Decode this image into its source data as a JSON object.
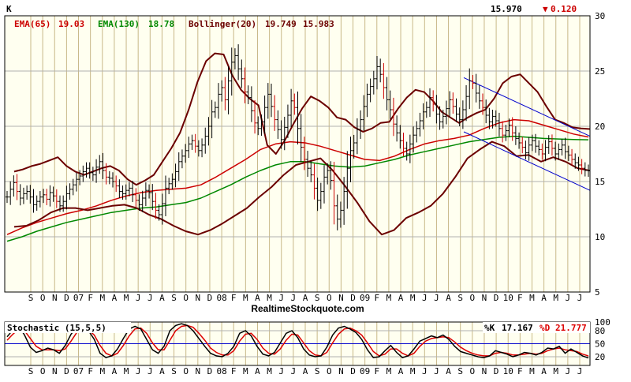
{
  "header": {
    "symbol": "K",
    "last_price": "15.970",
    "change_arrow": "▼",
    "change_value": "0.120"
  },
  "legend": {
    "ema65_label": "EMA(65)",
    "ema65_value": "19.03",
    "ema130_label": "EMA(130)",
    "ema130_value": "18.78",
    "bollinger_label": "Bollinger(20)",
    "bollinger_value1": "19.749",
    "bollinger_value2": "15.983"
  },
  "attribution": "RealtimeStockquote.com",
  "stoch_header": {
    "title": "Stochastic (15,5,5)",
    "k_label": "%K",
    "k_value": "17.167",
    "d_label": "%D",
    "d_value": "21.777"
  },
  "colors": {
    "background": "#FFFFF0",
    "grid_vertical": "#C8B888",
    "grid_horizontal": "#B0B0B0",
    "price_bars": "#000000",
    "price_bars_down": "#CC0000",
    "ema65": "#CC0000",
    "ema130": "#008800",
    "bollinger": "#6B0000",
    "channel": "#0000CC",
    "stoch_k": "#000000",
    "stoch_d": "#DD0000",
    "stoch_ref": "#0000CC",
    "legend_ema65": "#CC0000",
    "legend_ema130": "#008800",
    "legend_boll": "#6B0000",
    "change_down": "#CC0000"
  },
  "chart_data": [
    {
      "type": "line",
      "title": "",
      "y_axis": {
        "ticks": [
          5,
          10,
          15,
          20,
          25,
          30
        ],
        "range": [
          5,
          30
        ],
        "position": "right"
      },
      "x_axis_labels": [
        "S",
        "O",
        "N",
        "D",
        "07",
        "F",
        "M",
        "A",
        "M",
        "J",
        "J",
        "A",
        "S",
        "O",
        "N",
        "D",
        "08",
        "F",
        "M",
        "A",
        "M",
        "J",
        "J",
        "A",
        "S",
        "O",
        "N",
        "D",
        "09",
        "F",
        "M",
        "A",
        "M",
        "J",
        "J",
        "A",
        "S",
        "O",
        "N",
        "D",
        "10",
        "F",
        "M",
        "A",
        "M",
        "J",
        "J"
      ],
      "grid": true,
      "series": [
        {
          "name": "Price",
          "key": "close",
          "style": "ohlc-bars",
          "values": [
            13.6,
            14.3,
            14.9,
            14.1,
            13.5,
            13.9,
            14.1,
            13.6,
            12.9,
            13.2,
            13.6,
            13.8,
            13.4,
            14.0,
            13.7,
            13.2,
            12.8,
            13.2,
            13.9,
            14.3,
            14.7,
            15.2,
            15.5,
            15.9,
            16.2,
            15.8,
            15.6,
            16.3,
            16.8,
            16.0,
            15.4,
            15.3,
            15.0,
            14.6,
            14.1,
            13.9,
            14.2,
            14.4,
            13.8,
            13.3,
            12.9,
            13.5,
            14.2,
            14.0,
            13.2,
            12.4,
            12.0,
            13.0,
            14.4,
            14.8,
            15.2,
            15.9,
            16.8,
            17.3,
            17.8,
            18.4,
            18.7,
            18.2,
            17.8,
            18.3,
            19.1,
            20.0,
            21.3,
            21.7,
            22.9,
            23.5,
            22.4,
            24.1,
            25.8,
            26.4,
            25.2,
            24.3,
            23.1,
            22.6,
            21.4,
            20.3,
            19.8,
            20.4,
            21.7,
            22.9,
            21.8,
            20.6,
            19.7,
            18.8,
            19.9,
            21.0,
            22.3,
            21.7,
            19.8,
            18.1,
            17.0,
            16.2,
            15.6,
            14.4,
            13.3,
            14.1,
            15.4,
            16.0,
            15.1,
            12.8,
            11.6,
            12.4,
            14.1,
            16.2,
            17.8,
            18.5,
            19.7,
            20.6,
            21.8,
            22.9,
            23.6,
            24.3,
            25.4,
            24.7,
            23.5,
            22.4,
            21.5,
            20.2,
            19.4,
            18.7,
            18.0,
            17.5,
            18.4,
            19.2,
            19.8,
            20.5,
            21.3,
            21.7,
            22.6,
            22.0,
            21.1,
            20.4,
            20.9,
            21.6,
            22.4,
            21.8,
            21.1,
            20.6,
            21.5,
            22.7,
            24.1,
            23.9,
            23.0,
            22.3,
            21.7,
            21.0,
            20.4,
            20.9,
            20.5,
            19.8,
            19.2,
            19.6,
            20.1,
            19.4,
            18.9,
            18.5,
            18.1,
            17.6,
            18.3,
            18.7,
            18.2,
            17.9,
            17.5,
            18.1,
            18.6,
            18.0,
            17.5,
            17.9,
            18.3,
            17.7,
            17.4,
            17.0,
            16.7,
            16.5,
            16.2,
            16.0,
            15.97
          ]
        },
        {
          "name": "EMA(65)",
          "key": "ema65",
          "values": [
            10.2,
            10.8,
            11.3,
            11.7,
            12.1,
            12.4,
            12.8,
            13.3,
            13.7,
            14.0,
            14.2,
            14.3,
            14.4,
            14.7,
            15.4,
            16.2,
            17.0,
            17.9,
            18.4,
            18.6,
            18.5,
            18.2,
            17.8,
            17.4,
            17.0,
            16.9,
            17.3,
            17.9,
            18.4,
            18.7,
            18.9,
            19.2,
            19.8,
            20.3,
            20.6,
            20.5,
            20.1,
            19.7,
            19.3,
            19.03
          ]
        },
        {
          "name": "EMA(130)",
          "key": "ema130",
          "values": [
            9.6,
            10.0,
            10.5,
            10.9,
            11.3,
            11.6,
            11.9,
            12.2,
            12.4,
            12.6,
            12.7,
            12.9,
            13.1,
            13.5,
            14.1,
            14.7,
            15.4,
            16.0,
            16.5,
            16.8,
            16.8,
            16.6,
            16.4,
            16.3,
            16.4,
            16.7,
            17.0,
            17.4,
            17.7,
            18.0,
            18.3,
            18.6,
            18.8,
            19.0,
            19.1,
            19.0,
            18.9,
            18.85,
            18.8,
            18.78
          ]
        },
        {
          "name": "Bollinger(20) Upper",
          "key": "boll_upper",
          "values": [
            15.9,
            16.1,
            16.4,
            16.6,
            16.9,
            17.2,
            16.4,
            15.9,
            15.6,
            15.9,
            16.2,
            16.4,
            16.0,
            15.2,
            14.7,
            15.1,
            15.6,
            16.8,
            18.0,
            19.4,
            21.5,
            24.0,
            25.9,
            26.6,
            26.5,
            24.6,
            23.3,
            22.5,
            21.9,
            18.3,
            17.5,
            18.7,
            20.2,
            21.6,
            22.7,
            22.3,
            21.7,
            20.8,
            20.6,
            19.9,
            19.5,
            19.8,
            20.3,
            20.4,
            21.6,
            22.6,
            23.3,
            23.1,
            22.3,
            21.3,
            20.8,
            20.3,
            20.8,
            21.2,
            21.5,
            22.5,
            23.9,
            24.5,
            24.7,
            23.9,
            23.1,
            21.8,
            20.6,
            20.3,
            19.9,
            19.8,
            19.749
          ]
        },
        {
          "name": "Bollinger(20) Lower",
          "key": "boll_lower",
          "values": [
            10.9,
            11.0,
            11.5,
            12.2,
            12.6,
            12.6,
            12.4,
            12.6,
            12.8,
            12.9,
            12.6,
            12.0,
            11.6,
            11.0,
            10.5,
            10.2,
            10.6,
            11.2,
            11.9,
            12.6,
            13.6,
            14.5,
            15.6,
            16.5,
            16.8,
            17.1,
            16.0,
            14.6,
            13.1,
            11.4,
            10.2,
            10.6,
            11.7,
            12.2,
            12.8,
            13.9,
            15.4,
            17.1,
            17.9,
            18.6,
            18.2,
            17.3,
            17.4,
            16.8,
            17.2,
            16.8,
            16.2,
            15.983
          ]
        },
        {
          "name": "Channel Upper",
          "key": "channel_upper",
          "values": [
            24.4,
            19.1
          ]
        },
        {
          "name": "Channel Lower",
          "key": "channel_lower",
          "values": [
            19.5,
            14.2
          ]
        }
      ]
    },
    {
      "type": "line",
      "title": "Stochastic (15,5,5)",
      "y_axis": {
        "ticks": [
          20,
          50,
          80,
          100
        ],
        "range": [
          0,
          100
        ],
        "reference_lines": [
          20,
          50,
          80
        ],
        "position": "right"
      },
      "x_axis_labels": [
        "S",
        "O",
        "N",
        "D",
        "07",
        "F",
        "M",
        "A",
        "M",
        "J",
        "J",
        "A",
        "S",
        "O",
        "N",
        "D",
        "08",
        "F",
        "M",
        "A",
        "M",
        "J",
        "J",
        "A",
        "S",
        "O",
        "N",
        "D",
        "09",
        "F",
        "M",
        "A",
        "M",
        "J",
        "J",
        "A",
        "S",
        "O",
        "N",
        "D",
        "10",
        "F",
        "M",
        "A",
        "M",
        "J",
        "J"
      ],
      "series": [
        {
          "name": "%K",
          "key": "k",
          "values": [
            66,
            82,
            90,
            70,
            42,
            30,
            34,
            40,
            36,
            28,
            46,
            72,
            88,
            84,
            80,
            60,
            28,
            18,
            22,
            38,
            62,
            84,
            90,
            84,
            60,
            36,
            28,
            44,
            80,
            92,
            96,
            92,
            80,
            62,
            44,
            28,
            22,
            20,
            28,
            44,
            74,
            80,
            68,
            44,
            26,
            22,
            30,
            52,
            74,
            80,
            64,
            38,
            24,
            20,
            22,
            42,
            70,
            86,
            90,
            84,
            76,
            60,
            36,
            18,
            20,
            34,
            46,
            30,
            18,
            22,
            38,
            56,
            62,
            68,
            64,
            70,
            60,
            44,
            32,
            28,
            24,
            20,
            18,
            22,
            34,
            30,
            26,
            20,
            24,
            30,
            28,
            24,
            30,
            40,
            38,
            44,
            28,
            38,
            30,
            22,
            17.167
          ]
        },
        {
          "name": "%D",
          "key": "d",
          "values": [
            58,
            72,
            84,
            80,
            62,
            44,
            36,
            36,
            36,
            34,
            38,
            56,
            76,
            84,
            82,
            70,
            46,
            28,
            22,
            28,
            46,
            68,
            84,
            86,
            74,
            52,
            36,
            36,
            58,
            80,
            90,
            92,
            88,
            74,
            58,
            40,
            30,
            24,
            24,
            34,
            56,
            72,
            74,
            60,
            40,
            28,
            26,
            38,
            58,
            72,
            70,
            52,
            34,
            24,
            22,
            30,
            52,
            72,
            84,
            86,
            80,
            70,
            52,
            32,
            22,
            26,
            38,
            38,
            28,
            22,
            28,
            44,
            56,
            62,
            64,
            66,
            64,
            54,
            42,
            34,
            28,
            24,
            22,
            22,
            28,
            30,
            28,
            24,
            24,
            26,
            28,
            26,
            28,
            34,
            38,
            40,
            36,
            34,
            32,
            26,
            21.777
          ]
        }
      ]
    }
  ]
}
